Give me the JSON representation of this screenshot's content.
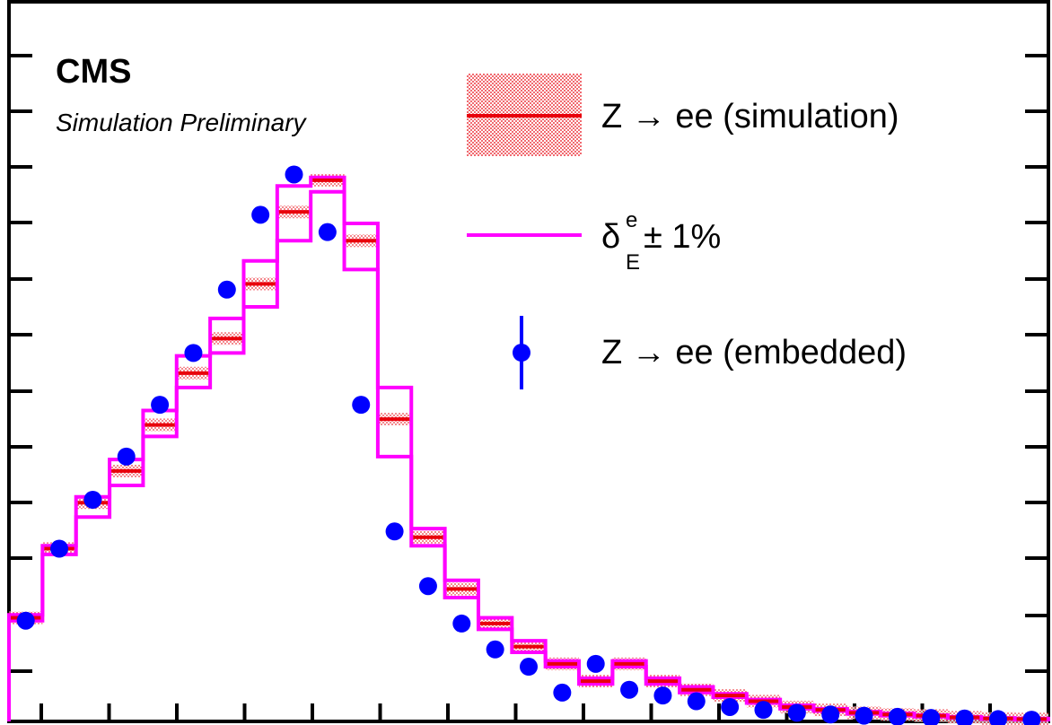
{
  "experiment": "CMS",
  "status": "Simulation Preliminary",
  "legend": {
    "simulation": {
      "prefix": "Z ",
      "arrow": "→",
      "suffix": " ee (simulation)"
    },
    "variation": {
      "delta": "δ",
      "sup": "e",
      "sub": "E",
      "suffix": " ± 1%"
    },
    "embedded": {
      "prefix": "Z ",
      "arrow": "→",
      "suffix": " ee (embedded)"
    }
  },
  "colors": {
    "simulation_line": "#e8000b",
    "simulation_band": "#f7a8a8",
    "variation": "#ff00ff",
    "embedded": "#0000ff",
    "frame": "#000000"
  },
  "chart_data": {
    "type": "line",
    "title": "",
    "xlabel": "",
    "ylabel": "",
    "ylim": [
      0,
      12.5
    ],
    "nbins": 31,
    "series": [
      {
        "name": "Z → ee (simulation)",
        "style": "step-with-band",
        "values": [
          1.8,
          3.0,
          3.8,
          4.35,
          5.15,
          6.05,
          6.65,
          7.6,
          8.85,
          9.4,
          8.35,
          5.25,
          3.2,
          2.3,
          1.7,
          1.3,
          1.0,
          0.7,
          1.0,
          0.7,
          0.55,
          0.45,
          0.35,
          0.25,
          0.2,
          0.15,
          0.12,
          0.1,
          0.07,
          0.05,
          0.04
        ]
      },
      {
        "name": "δ_E^e + 1%",
        "style": "step",
        "values": [
          1.85,
          3.05,
          3.9,
          4.55,
          5.4,
          6.35,
          7.0,
          8.0,
          9.3,
          9.45,
          8.65,
          5.8,
          3.35,
          2.45,
          1.8,
          1.4,
          1.05,
          0.75,
          1.05,
          0.75,
          0.6,
          0.48,
          0.38,
          0.28,
          0.22,
          0.17,
          0.14,
          0.11,
          0.08,
          0.06,
          0.05
        ]
      },
      {
        "name": "δ_E^e − 1%",
        "style": "step",
        "values": [
          1.75,
          2.9,
          3.55,
          4.1,
          4.95,
          5.8,
          6.4,
          7.2,
          8.35,
          9.2,
          7.85,
          4.6,
          3.05,
          2.15,
          1.6,
          1.2,
          0.95,
          0.65,
          0.95,
          0.65,
          0.5,
          0.42,
          0.32,
          0.22,
          0.18,
          0.13,
          0.1,
          0.08,
          0.06,
          0.04,
          0.03
        ]
      },
      {
        "name": "Z → ee (embedded)",
        "style": "points",
        "values": [
          1.75,
          3.0,
          3.85,
          4.6,
          5.5,
          6.4,
          7.5,
          8.8,
          9.5,
          8.5,
          5.5,
          3.3,
          2.35,
          1.7,
          1.25,
          0.95,
          0.5,
          1.0,
          0.55,
          0.45,
          0.35,
          0.25,
          0.2,
          0.15,
          0.12,
          0.1,
          0.08,
          0.06,
          0.05,
          0.04,
          0.03
        ]
      }
    ],
    "grid": false,
    "legend_position": "top-right"
  }
}
